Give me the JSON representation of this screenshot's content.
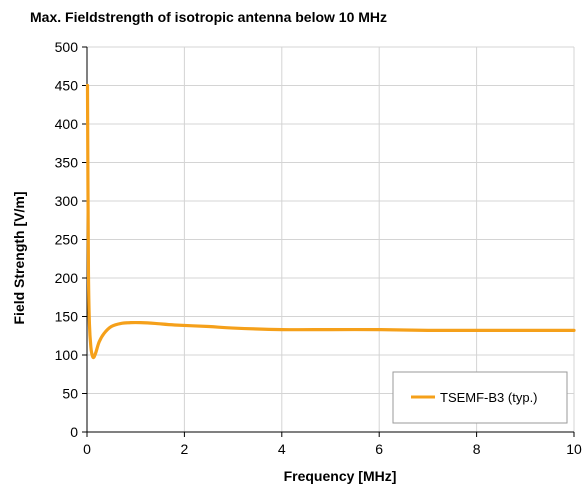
{
  "chart_data": {
    "type": "line",
    "title": "Max. Fieldstrength of isotropic antenna below 10 MHz",
    "xlabel": "Frequency [MHz]",
    "ylabel": "Field Strength [V/m]",
    "xlim": [
      0,
      10
    ],
    "ylim": [
      0,
      500
    ],
    "xticks": [
      0,
      2,
      4,
      6,
      8,
      10
    ],
    "yticks": [
      0,
      50,
      100,
      150,
      200,
      250,
      300,
      350,
      400,
      450,
      500
    ],
    "grid": true,
    "legend_position": "bottom-right",
    "series": [
      {
        "name": "TSEMF-B3 (typ.)",
        "color": "#F5A01A",
        "x": [
          0.01,
          0.02,
          0.03,
          0.05,
          0.08,
          0.11,
          0.14,
          0.18,
          0.25,
          0.35,
          0.5,
          0.7,
          0.9,
          1.1,
          1.4,
          1.8,
          2.5,
          3.0,
          4.0,
          5.0,
          6.0,
          7.0,
          8.0,
          9.0,
          10.0
        ],
        "y": [
          450,
          315,
          205,
          140,
          110,
          99,
          97,
          103,
          117,
          128,
          137,
          141,
          142,
          142,
          141,
          139,
          137,
          135,
          133,
          133,
          133,
          132,
          132,
          132,
          132
        ]
      }
    ]
  }
}
